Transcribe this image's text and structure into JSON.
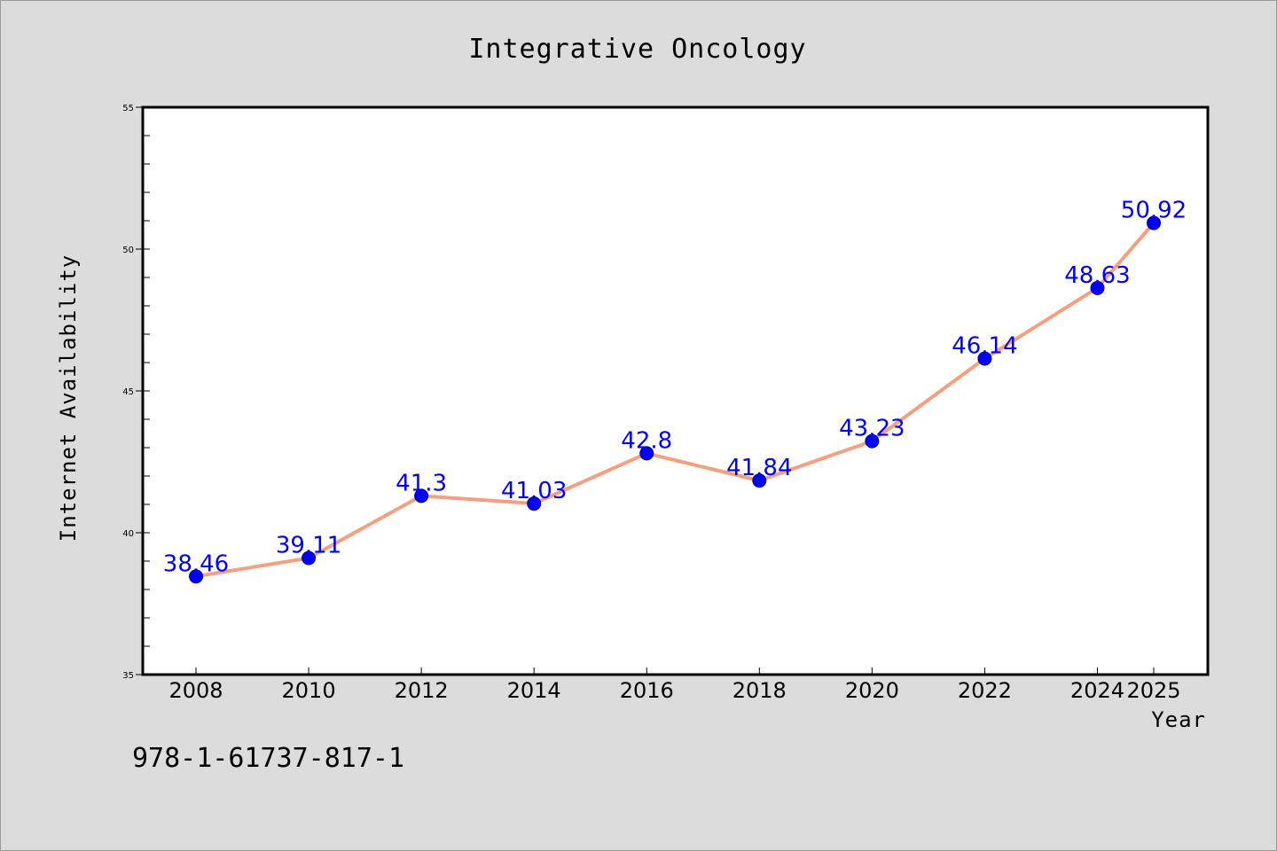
{
  "chart_data": {
    "type": "line",
    "title": "Integrative Oncology",
    "xlabel": "Year",
    "ylabel": "Internet Availability",
    "x": [
      "2008",
      "2010",
      "2012",
      "2014",
      "2016",
      "2018",
      "2020",
      "2022",
      "2024",
      "2025"
    ],
    "y_tick_labels": [
      "35",
      "40",
      "45",
      "50",
      "55"
    ],
    "ylim": [
      35,
      55
    ],
    "grid": false,
    "legend": "none",
    "series": [
      {
        "values": [
          38.46,
          39.11,
          41.3,
          41.03,
          42.8,
          41.84,
          43.23,
          46.14,
          48.63,
          50.92
        ],
        "labels": [
          "38.46",
          "39.11",
          "41.3",
          "41.03",
          "42.8",
          "41.84",
          "43.23",
          "46.14",
          "48.63",
          "50.92"
        ]
      }
    ]
  },
  "footer": {
    "isbn": "978-1-61737-817-1"
  },
  "colors": {
    "background": "#dcdcdc",
    "plot_background": "#ffffff",
    "line": "#f4a07e",
    "marker": "#0000ff",
    "data_label": "#0000ff",
    "axis": "#000000"
  }
}
